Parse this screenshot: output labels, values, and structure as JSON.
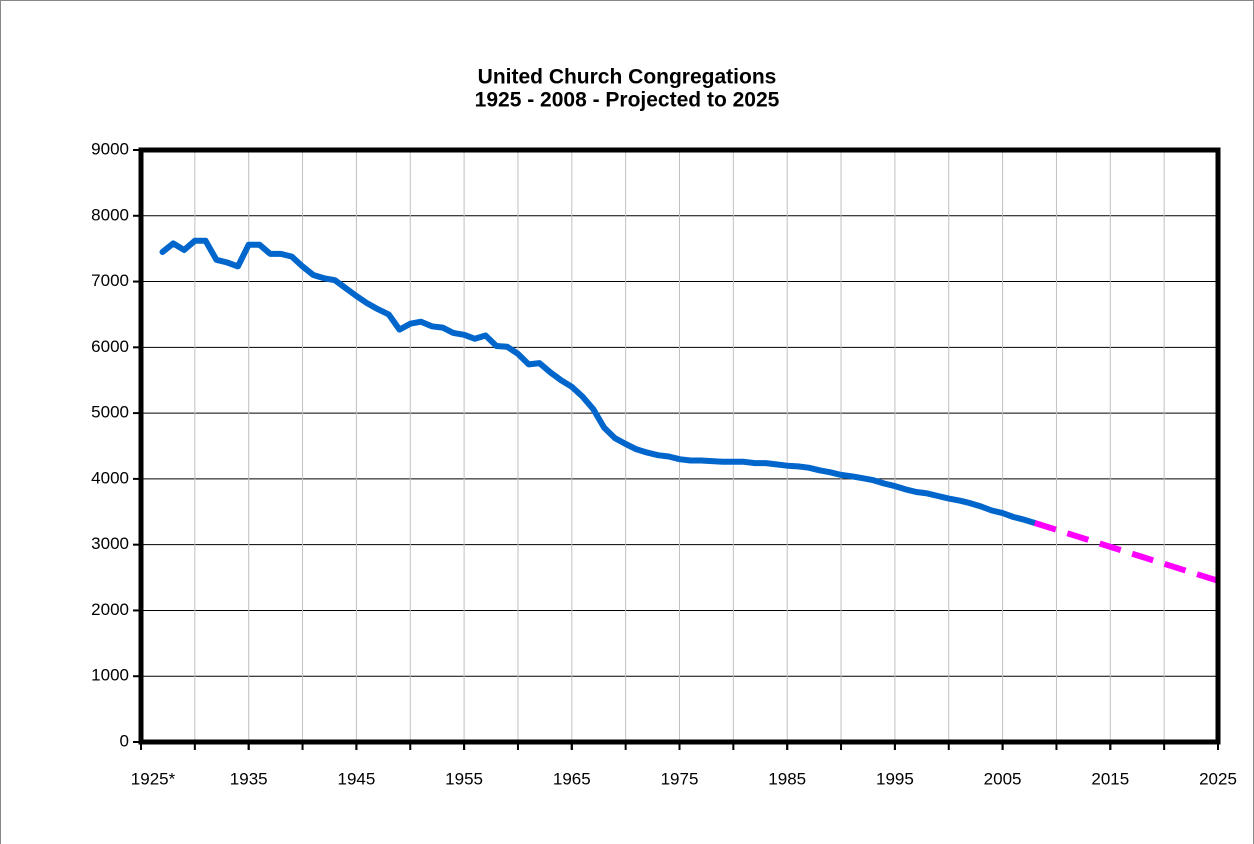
{
  "chart_data": {
    "type": "line",
    "title": "United Church Congregations",
    "subtitle": "1925 - 2008 - Projected to 2025",
    "series": [
      {
        "color": "#0066cc",
        "dash": false,
        "x": [
          1927,
          1928,
          1929,
          1930,
          1931,
          1932,
          1933,
          1934,
          1935,
          1936,
          1937,
          1938,
          1939,
          1940,
          1941,
          1942,
          1943,
          1944,
          1945,
          1946,
          1947,
          1948,
          1949,
          1950,
          1951,
          1952,
          1953,
          1954,
          1955,
          1956,
          1957,
          1958,
          1959,
          1960,
          1961,
          1962,
          1963,
          1964,
          1965,
          1966,
          1967,
          1968,
          1969,
          1970,
          1971,
          1972,
          1973,
          1974,
          1975,
          1976,
          1977,
          1978,
          1979,
          1980,
          1981,
          1982,
          1983,
          1984,
          1985,
          1986,
          1987,
          1988,
          1989,
          1990,
          1991,
          1992,
          1993,
          1994,
          1995,
          1996,
          1997,
          1998,
          1999,
          2000,
          2001,
          2002,
          2003,
          2004,
          2005,
          2006,
          2007,
          2008
        ],
        "values": [
          7450,
          7580,
          7480,
          7620,
          7620,
          7330,
          7290,
          7230,
          7560,
          7560,
          7420,
          7420,
          7380,
          7230,
          7100,
          7050,
          7020,
          6900,
          6780,
          6670,
          6580,
          6500,
          6270,
          6360,
          6390,
          6320,
          6300,
          6220,
          6190,
          6130,
          6180,
          6020,
          6010,
          5900,
          5740,
          5760,
          5620,
          5500,
          5400,
          5250,
          5060,
          4780,
          4620,
          4530,
          4450,
          4400,
          4360,
          4340,
          4300,
          4280,
          4280,
          4270,
          4260,
          4260,
          4260,
          4240,
          4240,
          4220,
          4200,
          4190,
          4170,
          4130,
          4100,
          4060,
          4040,
          4010,
          3980,
          3930,
          3890,
          3840,
          3800,
          3780,
          3740,
          3700,
          3670,
          3630,
          3580,
          3520,
          3480,
          3420,
          3380,
          3330
        ]
      },
      {
        "color": "#ff00ff",
        "dash": true,
        "x": [
          2008,
          2025
        ],
        "values": [
          3330,
          2450
        ]
      }
    ],
    "xlim": [
      1925,
      2025
    ],
    "xticks": [
      {
        "value": 1925,
        "label": "1925*"
      },
      1935,
      1945,
      1955,
      1965,
      1975,
      1985,
      1995,
      2005,
      2015,
      2025
    ],
    "xgrid": [
      1930,
      1935,
      1940,
      1945,
      1950,
      1955,
      1960,
      1965,
      1970,
      1975,
      1980,
      1985,
      1990,
      1995,
      2000,
      2005,
      2010,
      2015,
      2020
    ],
    "ylim": [
      0,
      9000
    ],
    "yticks": [
      0,
      1000,
      2000,
      3000,
      4000,
      5000,
      6000,
      7000,
      8000,
      9000
    ],
    "grid": true
  }
}
